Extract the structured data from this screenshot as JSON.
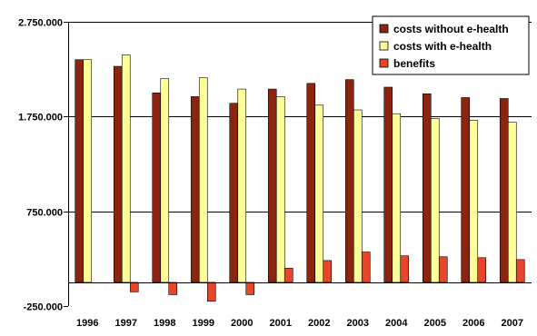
{
  "chart_data": {
    "type": "bar",
    "title": "",
    "xlabel": "",
    "ylabel": "",
    "categories": [
      "1996",
      "1997",
      "1998",
      "1999",
      "2000",
      "2001",
      "2002",
      "2003",
      "2004",
      "2005",
      "2006",
      "2007"
    ],
    "series": [
      {
        "name": "costs without e-health",
        "color": "#8B2510",
        "values": [
          2350000,
          2280000,
          2000000,
          1960000,
          1890000,
          2040000,
          2100000,
          2140000,
          2060000,
          1990000,
          1950000,
          1940000
        ]
      },
      {
        "name": "costs with e-health",
        "color": "#FFFF99",
        "values": [
          2350000,
          2400000,
          2150000,
          2160000,
          2040000,
          1960000,
          1870000,
          1820000,
          1780000,
          1730000,
          1710000,
          1690000
        ]
      },
      {
        "name": "benefits",
        "color": "#E8462A",
        "values": [
          0,
          -100000,
          -130000,
          -200000,
          -130000,
          150000,
          230000,
          320000,
          280000,
          270000,
          260000,
          240000
        ]
      }
    ],
    "ylim": [
      -250000,
      2750000
    ],
    "yticks": [
      -250000,
      750000,
      1750000,
      2750000
    ],
    "ytick_labels": [
      "-250.000",
      "750.000",
      "1.750.000",
      "2.750.000"
    ],
    "grid": true,
    "legend_position": "top-right"
  }
}
